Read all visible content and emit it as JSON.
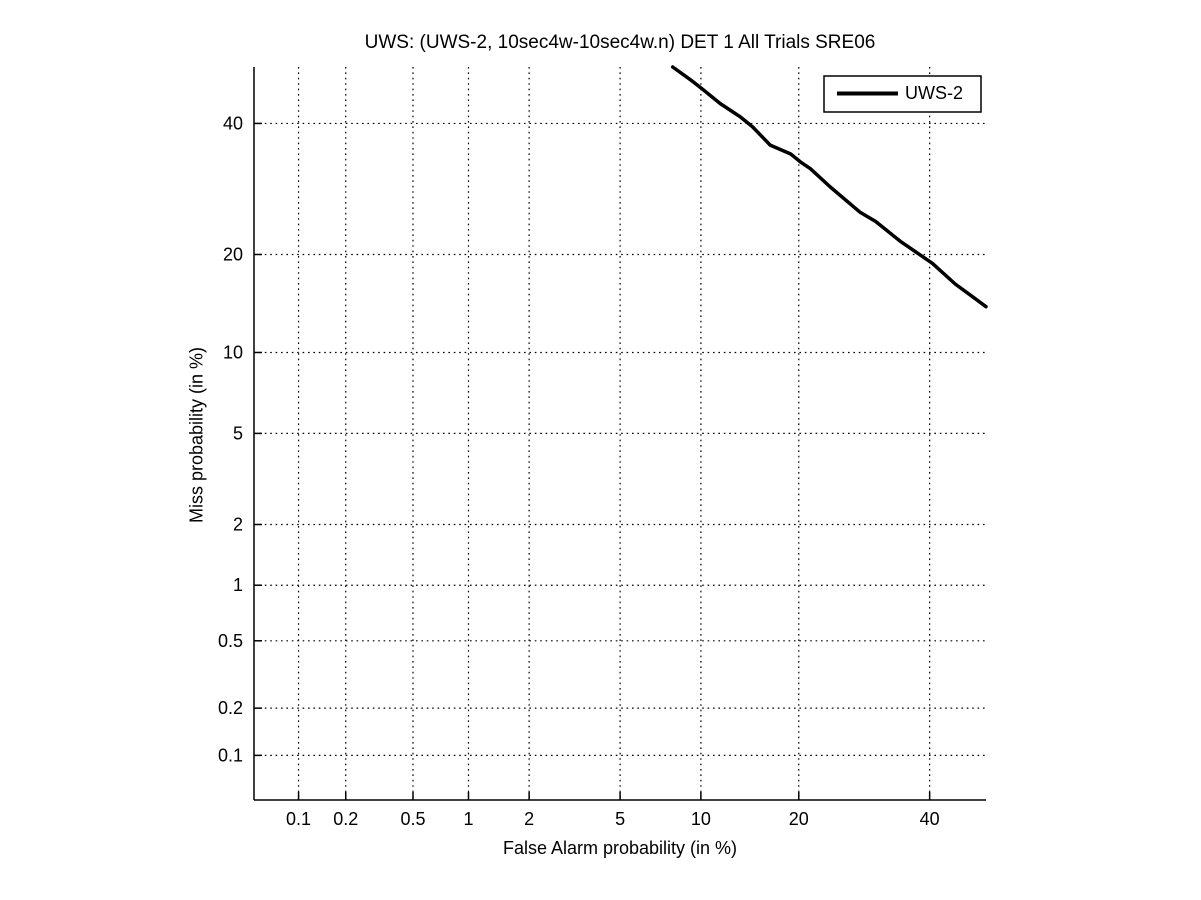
{
  "chart_data": {
    "type": "line",
    "title": "UWS: (UWS-2, 10sec4w-10sec4w.n) DET 1 All Trials SRE06",
    "xlabel": "False Alarm probability (in %)",
    "ylabel": "Miss probability (in %)",
    "axis_scale": "normal-deviate (DET / probit scale on both axes)",
    "xlim_pct": [
      0.05,
      50
    ],
    "ylim_pct": [
      0.05,
      50
    ],
    "x_ticks_pct": [
      0.1,
      0.2,
      0.5,
      1,
      2,
      5,
      10,
      20,
      40
    ],
    "y_ticks_pct": [
      0.1,
      0.2,
      0.5,
      1,
      2,
      5,
      10,
      20,
      40
    ],
    "x_tick_labels": [
      "0.1",
      "0.2",
      "0.5",
      "1",
      "2",
      "5",
      "10",
      "20",
      "40"
    ],
    "y_tick_labels": [
      "0.1",
      "0.2",
      "0.5",
      "1",
      "2",
      "5",
      "10",
      "20",
      "40"
    ],
    "grid": "dotted",
    "legend_position": "top-right",
    "series": [
      {
        "name": "UWS-2",
        "color": "#000000",
        "line_width": 3.5,
        "points_fa_miss_pct": [
          [
            7.95,
            50.0
          ],
          [
            9.2,
            47.7
          ],
          [
            10.2,
            45.9
          ],
          [
            11.6,
            43.5
          ],
          [
            13.5,
            41.1
          ],
          [
            14.7,
            39.4
          ],
          [
            16.6,
            36.3
          ],
          [
            19.0,
            34.8
          ],
          [
            20.2,
            33.5
          ],
          [
            21.5,
            32.4
          ],
          [
            24.2,
            29.5
          ],
          [
            28.6,
            25.7
          ],
          [
            31.0,
            24.4
          ],
          [
            35.0,
            21.7
          ],
          [
            40.5,
            18.9
          ],
          [
            44.5,
            16.5
          ],
          [
            48.1,
            14.9
          ],
          [
            50.0,
            14.1
          ]
        ]
      }
    ]
  },
  "colors": {
    "background": "#ffffff",
    "axis": "#000000",
    "grid": "#000000",
    "curve": "#000000",
    "text": "#000000"
  }
}
